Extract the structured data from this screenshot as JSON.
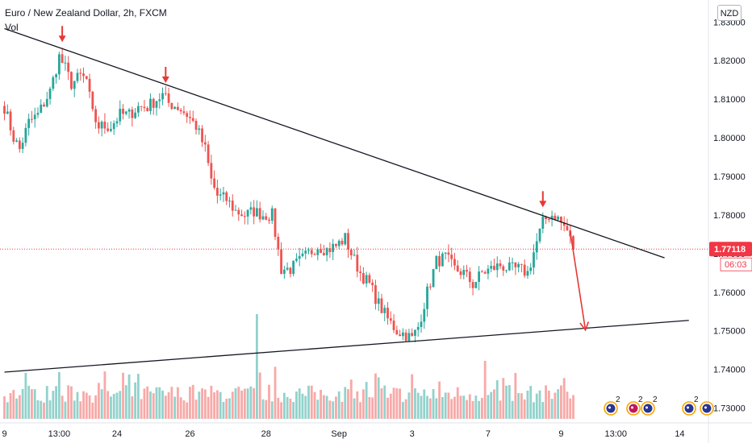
{
  "header": {
    "title": "Euro / New Zealand Dollar, 2h, FXCM",
    "indicator": "Vol"
  },
  "currency_button": "NZD",
  "price_label": {
    "value": "1.77118",
    "countdown": "06:03"
  },
  "event_badges": [
    "2",
    "2",
    "2",
    "2"
  ],
  "colors": {
    "up": "#26a69a",
    "down": "#ef5350",
    "arrow": "#e53935",
    "trendline": "#131722",
    "price_line": "#f23645"
  },
  "chart_data": {
    "type": "candlestick",
    "title": "Euro / New Zealand Dollar, 2h, FXCM",
    "y_ticks": [
      1.73,
      1.74,
      1.75,
      1.76,
      1.77,
      1.78,
      1.79,
      1.8,
      1.81,
      1.82,
      1.83
    ],
    "y_tick_labels": [
      "1.73000",
      "1.74000",
      "1.75000",
      "1.76000",
      "1.77000",
      "1.78000",
      "1.79000",
      "1.80000",
      "1.81000",
      "1.82000",
      "1.83000"
    ],
    "ylim": [
      1.7272,
      1.8357
    ],
    "x_ticks": [
      {
        "label": "9",
        "bar": 0
      },
      {
        "label": "13:00",
        "bar": 18
      },
      {
        "label": "24",
        "bar": 37
      },
      {
        "label": "26",
        "bar": 61
      },
      {
        "label": "28",
        "bar": 86
      },
      {
        "label": "Sep",
        "bar": 110
      },
      {
        "label": "3",
        "bar": 134
      },
      {
        "label": "7",
        "bar": 159
      },
      {
        "label": "9",
        "bar": 183
      },
      {
        "label": "13:00",
        "bar": 201
      },
      {
        "label": "14",
        "bar": 222
      }
    ],
    "last_price": 1.77118,
    "price_anchors": [
      [
        0,
        1.808
      ],
      [
        3,
        1.8
      ],
      [
        5,
        1.797
      ],
      [
        8,
        1.804
      ],
      [
        11,
        1.806
      ],
      [
        15,
        1.812
      ],
      [
        18,
        1.821
      ],
      [
        20,
        1.818
      ],
      [
        22,
        1.814
      ],
      [
        25,
        1.816
      ],
      [
        27,
        1.815
      ],
      [
        29,
        1.806
      ],
      [
        31,
        1.803
      ],
      [
        35,
        1.803
      ],
      [
        38,
        1.806
      ],
      [
        41,
        1.806
      ],
      [
        44,
        1.808
      ],
      [
        47,
        1.808
      ],
      [
        50,
        1.81
      ],
      [
        52,
        1.811
      ],
      [
        54,
        1.809
      ],
      [
        57,
        1.808
      ],
      [
        60,
        1.806
      ],
      [
        63,
        1.803
      ],
      [
        66,
        1.797
      ],
      [
        68,
        1.789
      ],
      [
        70,
        1.785
      ],
      [
        73,
        1.784
      ],
      [
        76,
        1.781
      ],
      [
        79,
        1.78
      ],
      [
        82,
        1.781
      ],
      [
        85,
        1.78
      ],
      [
        88,
        1.78
      ],
      [
        91,
        1.766
      ],
      [
        94,
        1.766
      ],
      [
        97,
        1.768
      ],
      [
        100,
        1.77
      ],
      [
        103,
        1.772
      ],
      [
        106,
        1.771
      ],
      [
        109,
        1.772
      ],
      [
        112,
        1.774
      ],
      [
        114,
        1.77
      ],
      [
        117,
        1.765
      ],
      [
        120,
        1.762
      ],
      [
        123,
        1.757
      ],
      [
        126,
        1.753
      ],
      [
        129,
        1.75
      ],
      [
        132,
        1.749
      ],
      [
        134,
        1.748
      ],
      [
        136,
        1.751
      ],
      [
        139,
        1.76
      ],
      [
        142,
        1.768
      ],
      [
        145,
        1.769
      ],
      [
        148,
        1.766
      ],
      [
        151,
        1.765
      ],
      [
        154,
        1.762
      ],
      [
        157,
        1.765
      ],
      [
        160,
        1.766
      ],
      [
        163,
        1.767
      ],
      [
        166,
        1.766
      ],
      [
        169,
        1.766
      ],
      [
        172,
        1.765
      ],
      [
        175,
        1.773
      ],
      [
        177,
        1.778
      ],
      [
        179,
        1.78
      ],
      [
        181,
        1.78
      ],
      [
        183,
        1.778
      ],
      [
        185,
        1.776
      ],
      [
        187,
        1.7712
      ]
    ],
    "volume_max_label": "relative",
    "annotations": [
      {
        "type": "trendline",
        "from": {
          "bar": 0,
          "price": 1.8283
        },
        "to": {
          "bar": 217,
          "price": 1.7689
        }
      },
      {
        "type": "trendline",
        "from": {
          "bar": 0,
          "price": 1.7393
        },
        "to": {
          "bar": 225,
          "price": 1.7527
        }
      },
      {
        "type": "down-arrow",
        "bar": 19,
        "price": 1.8248
      },
      {
        "type": "down-arrow",
        "bar": 53,
        "price": 1.8142
      },
      {
        "type": "down-arrow",
        "bar": 177,
        "price": 1.782
      },
      {
        "type": "projection-arrow",
        "from": {
          "bar": 186,
          "price": 1.7757
        },
        "to": {
          "bar": 191,
          "price": 1.7502
        }
      }
    ]
  }
}
